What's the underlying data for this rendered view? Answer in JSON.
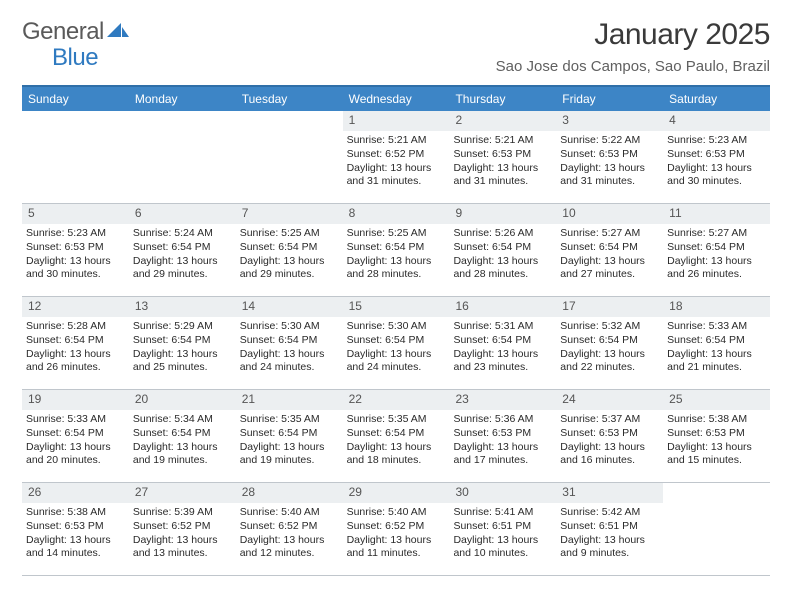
{
  "logo": {
    "text1": "General",
    "text2": "Blue"
  },
  "title": "January 2025",
  "location": "Sao Jose dos Campos, Sao Paulo, Brazil",
  "colors": {
    "header_bg": "#3d85c6",
    "header_border": "#2f6fa8",
    "daynum_bg": "#eceff1",
    "week_border": "#c0c6cc",
    "logo_gray": "#5a5a5a",
    "logo_blue": "#2f7ac0",
    "text": "#2a2a2a"
  },
  "fonts": {
    "title_size": 30,
    "location_size": 15,
    "dayhead_size": 12,
    "cell_size": 10.5
  },
  "day_headers": [
    "Sunday",
    "Monday",
    "Tuesday",
    "Wednesday",
    "Thursday",
    "Friday",
    "Saturday"
  ],
  "weeks": [
    [
      {
        "day": "",
        "sunrise": "",
        "sunset": "",
        "daylight": ""
      },
      {
        "day": "",
        "sunrise": "",
        "sunset": "",
        "daylight": ""
      },
      {
        "day": "",
        "sunrise": "",
        "sunset": "",
        "daylight": ""
      },
      {
        "day": "1",
        "sunrise": "Sunrise: 5:21 AM",
        "sunset": "Sunset: 6:52 PM",
        "daylight": "Daylight: 13 hours and 31 minutes."
      },
      {
        "day": "2",
        "sunrise": "Sunrise: 5:21 AM",
        "sunset": "Sunset: 6:53 PM",
        "daylight": "Daylight: 13 hours and 31 minutes."
      },
      {
        "day": "3",
        "sunrise": "Sunrise: 5:22 AM",
        "sunset": "Sunset: 6:53 PM",
        "daylight": "Daylight: 13 hours and 31 minutes."
      },
      {
        "day": "4",
        "sunrise": "Sunrise: 5:23 AM",
        "sunset": "Sunset: 6:53 PM",
        "daylight": "Daylight: 13 hours and 30 minutes."
      }
    ],
    [
      {
        "day": "5",
        "sunrise": "Sunrise: 5:23 AM",
        "sunset": "Sunset: 6:53 PM",
        "daylight": "Daylight: 13 hours and 30 minutes."
      },
      {
        "day": "6",
        "sunrise": "Sunrise: 5:24 AM",
        "sunset": "Sunset: 6:54 PM",
        "daylight": "Daylight: 13 hours and 29 minutes."
      },
      {
        "day": "7",
        "sunrise": "Sunrise: 5:25 AM",
        "sunset": "Sunset: 6:54 PM",
        "daylight": "Daylight: 13 hours and 29 minutes."
      },
      {
        "day": "8",
        "sunrise": "Sunrise: 5:25 AM",
        "sunset": "Sunset: 6:54 PM",
        "daylight": "Daylight: 13 hours and 28 minutes."
      },
      {
        "day": "9",
        "sunrise": "Sunrise: 5:26 AM",
        "sunset": "Sunset: 6:54 PM",
        "daylight": "Daylight: 13 hours and 28 minutes."
      },
      {
        "day": "10",
        "sunrise": "Sunrise: 5:27 AM",
        "sunset": "Sunset: 6:54 PM",
        "daylight": "Daylight: 13 hours and 27 minutes."
      },
      {
        "day": "11",
        "sunrise": "Sunrise: 5:27 AM",
        "sunset": "Sunset: 6:54 PM",
        "daylight": "Daylight: 13 hours and 26 minutes."
      }
    ],
    [
      {
        "day": "12",
        "sunrise": "Sunrise: 5:28 AM",
        "sunset": "Sunset: 6:54 PM",
        "daylight": "Daylight: 13 hours and 26 minutes."
      },
      {
        "day": "13",
        "sunrise": "Sunrise: 5:29 AM",
        "sunset": "Sunset: 6:54 PM",
        "daylight": "Daylight: 13 hours and 25 minutes."
      },
      {
        "day": "14",
        "sunrise": "Sunrise: 5:30 AM",
        "sunset": "Sunset: 6:54 PM",
        "daylight": "Daylight: 13 hours and 24 minutes."
      },
      {
        "day": "15",
        "sunrise": "Sunrise: 5:30 AM",
        "sunset": "Sunset: 6:54 PM",
        "daylight": "Daylight: 13 hours and 24 minutes."
      },
      {
        "day": "16",
        "sunrise": "Sunrise: 5:31 AM",
        "sunset": "Sunset: 6:54 PM",
        "daylight": "Daylight: 13 hours and 23 minutes."
      },
      {
        "day": "17",
        "sunrise": "Sunrise: 5:32 AM",
        "sunset": "Sunset: 6:54 PM",
        "daylight": "Daylight: 13 hours and 22 minutes."
      },
      {
        "day": "18",
        "sunrise": "Sunrise: 5:33 AM",
        "sunset": "Sunset: 6:54 PM",
        "daylight": "Daylight: 13 hours and 21 minutes."
      }
    ],
    [
      {
        "day": "19",
        "sunrise": "Sunrise: 5:33 AM",
        "sunset": "Sunset: 6:54 PM",
        "daylight": "Daylight: 13 hours and 20 minutes."
      },
      {
        "day": "20",
        "sunrise": "Sunrise: 5:34 AM",
        "sunset": "Sunset: 6:54 PM",
        "daylight": "Daylight: 13 hours and 19 minutes."
      },
      {
        "day": "21",
        "sunrise": "Sunrise: 5:35 AM",
        "sunset": "Sunset: 6:54 PM",
        "daylight": "Daylight: 13 hours and 19 minutes."
      },
      {
        "day": "22",
        "sunrise": "Sunrise: 5:35 AM",
        "sunset": "Sunset: 6:54 PM",
        "daylight": "Daylight: 13 hours and 18 minutes."
      },
      {
        "day": "23",
        "sunrise": "Sunrise: 5:36 AM",
        "sunset": "Sunset: 6:53 PM",
        "daylight": "Daylight: 13 hours and 17 minutes."
      },
      {
        "day": "24",
        "sunrise": "Sunrise: 5:37 AM",
        "sunset": "Sunset: 6:53 PM",
        "daylight": "Daylight: 13 hours and 16 minutes."
      },
      {
        "day": "25",
        "sunrise": "Sunrise: 5:38 AM",
        "sunset": "Sunset: 6:53 PM",
        "daylight": "Daylight: 13 hours and 15 minutes."
      }
    ],
    [
      {
        "day": "26",
        "sunrise": "Sunrise: 5:38 AM",
        "sunset": "Sunset: 6:53 PM",
        "daylight": "Daylight: 13 hours and 14 minutes."
      },
      {
        "day": "27",
        "sunrise": "Sunrise: 5:39 AM",
        "sunset": "Sunset: 6:52 PM",
        "daylight": "Daylight: 13 hours and 13 minutes."
      },
      {
        "day": "28",
        "sunrise": "Sunrise: 5:40 AM",
        "sunset": "Sunset: 6:52 PM",
        "daylight": "Daylight: 13 hours and 12 minutes."
      },
      {
        "day": "29",
        "sunrise": "Sunrise: 5:40 AM",
        "sunset": "Sunset: 6:52 PM",
        "daylight": "Daylight: 13 hours and 11 minutes."
      },
      {
        "day": "30",
        "sunrise": "Sunrise: 5:41 AM",
        "sunset": "Sunset: 6:51 PM",
        "daylight": "Daylight: 13 hours and 10 minutes."
      },
      {
        "day": "31",
        "sunrise": "Sunrise: 5:42 AM",
        "sunset": "Sunset: 6:51 PM",
        "daylight": "Daylight: 13 hours and 9 minutes."
      },
      {
        "day": "",
        "sunrise": "",
        "sunset": "",
        "daylight": ""
      }
    ]
  ]
}
